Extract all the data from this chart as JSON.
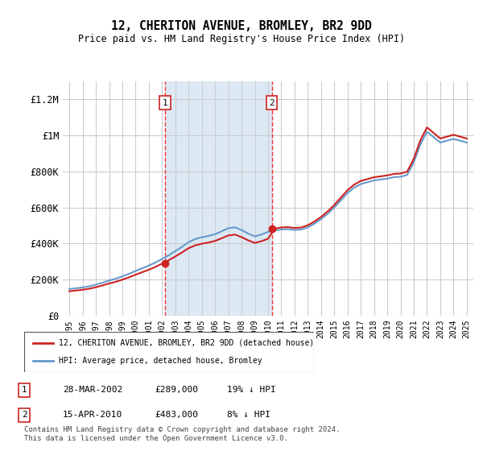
{
  "title": "12, CHERITON AVENUE, BROMLEY, BR2 9DD",
  "subtitle": "Price paid vs. HM Land Registry's House Price Index (HPI)",
  "background_color": "#ffffff",
  "plot_bg_color": "#ffffff",
  "shaded_region_color": "#dce9f5",
  "grid_color": "#cccccc",
  "hpi_line_color": "#6699cc",
  "price_line_color": "#cc2222",
  "sale1": {
    "date_x": 2002.23,
    "price": 289000,
    "label": "1"
  },
  "sale2": {
    "date_x": 2010.29,
    "price": 483000,
    "label": "2"
  },
  "ylim": [
    0,
    1300000
  ],
  "xlim": [
    1994.5,
    2025.5
  ],
  "yticks": [
    0,
    200000,
    400000,
    600000,
    800000,
    1000000,
    1200000
  ],
  "ytick_labels": [
    "£0",
    "£200K",
    "£400K",
    "£600K",
    "£800K",
    "£1M",
    "£1.2M"
  ],
  "xticks": [
    1995,
    1996,
    1997,
    1998,
    1999,
    2000,
    2001,
    2002,
    2003,
    2004,
    2005,
    2006,
    2007,
    2008,
    2009,
    2010,
    2011,
    2012,
    2013,
    2014,
    2015,
    2016,
    2017,
    2018,
    2019,
    2020,
    2021,
    2022,
    2023,
    2024,
    2025
  ],
  "legend_label_red": "12, CHERITON AVENUE, BROMLEY, BR2 9DD (detached house)",
  "legend_label_blue": "HPI: Average price, detached house, Bromley",
  "table_rows": [
    {
      "num": "1",
      "date": "28-MAR-2002",
      "price": "£289,000",
      "hpi": "19% ↓ HPI"
    },
    {
      "num": "2",
      "date": "15-APR-2010",
      "price": "£483,000",
      "hpi": "8% ↓ HPI"
    }
  ],
  "footer": "Contains HM Land Registry data © Crown copyright and database right 2024.\nThis data is licensed under the Open Government Licence v3.0.",
  "shaded_x_start": 2002.23,
  "shaded_x_end": 2010.29
}
